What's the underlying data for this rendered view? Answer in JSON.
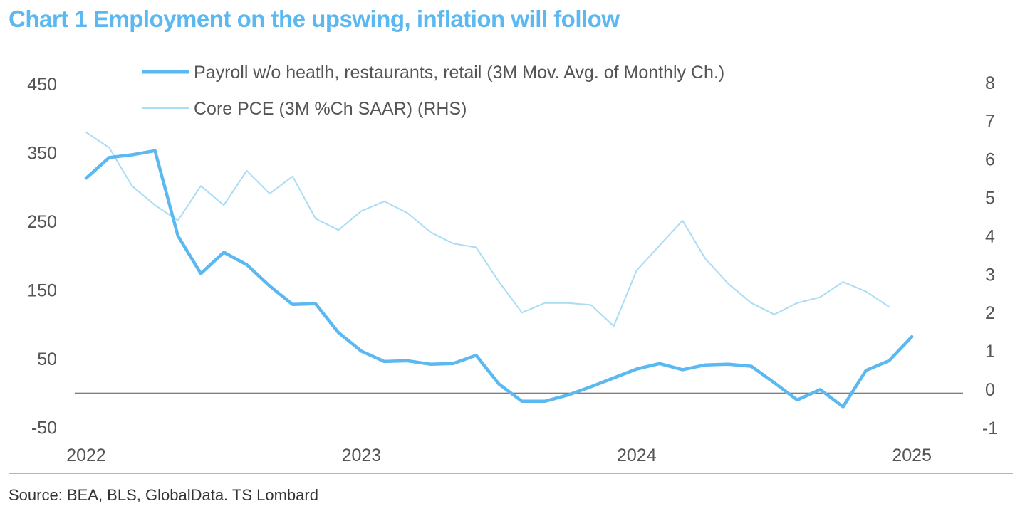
{
  "title": "Chart 1 Employment on the upswing, inflation will follow",
  "source": "Source: BEA, BLS, GlobalData. TS Lombard",
  "colors": {
    "payroll": "#5cb8f0",
    "pce": "#a9dcf5",
    "title": "#5cb8f0",
    "text": "#555555"
  },
  "chart_data": {
    "type": "line",
    "title": "Chart 1 Employment on the upswing, inflation will follow",
    "x_ticks": [
      "2022",
      "2023",
      "2024",
      "2025"
    ],
    "x_range": [
      "2022-01",
      "2025-03"
    ],
    "y_left": {
      "range": [
        -50,
        450
      ],
      "ticks": [
        "450",
        "350",
        "250",
        "150",
        "50",
        "-50"
      ]
    },
    "y_right": {
      "range": [
        -1,
        8
      ],
      "ticks": [
        "8",
        "7",
        "6",
        "5",
        "4",
        "3",
        "2",
        "1",
        "0",
        "-1"
      ]
    },
    "zero_line": true,
    "legend_position": "top",
    "series": [
      {
        "name": "Payroll w/o heatlh, restaurants, retail (3M Mov. Avg. of Monthly Ch.)",
        "axis": "left",
        "x": [
          "2022-01",
          "2022-02",
          "2022-03",
          "2022-04",
          "2022-05",
          "2022-06",
          "2022-07",
          "2022-08",
          "2022-09",
          "2022-10",
          "2022-11",
          "2022-12",
          "2023-01",
          "2023-02",
          "2023-03",
          "2023-04",
          "2023-05",
          "2023-06",
          "2023-07",
          "2023-08",
          "2023-09",
          "2023-10",
          "2023-11",
          "2023-12",
          "2024-01",
          "2024-02",
          "2024-03",
          "2024-04",
          "2024-05",
          "2024-06",
          "2024-07",
          "2024-08",
          "2024-09",
          "2024-10",
          "2024-11",
          "2024-12",
          "2025-01"
        ],
        "values": [
          313,
          343,
          347,
          353,
          229,
          174,
          205,
          187,
          156,
          129,
          130,
          88,
          61,
          46,
          47,
          42,
          43,
          55,
          13,
          -12,
          -12,
          -3,
          9,
          22,
          35,
          43,
          34,
          41,
          42,
          39,
          15,
          -10,
          5,
          -20,
          33,
          47,
          82
        ]
      },
      {
        "name": "Core PCE (3M %Ch SAAR) (RHS)",
        "axis": "right",
        "x": [
          "2022-01",
          "2022-02",
          "2022-03",
          "2022-04",
          "2022-05",
          "2022-06",
          "2022-07",
          "2022-08",
          "2022-09",
          "2022-10",
          "2022-11",
          "2022-12",
          "2023-01",
          "2023-02",
          "2023-03",
          "2023-04",
          "2023-05",
          "2023-06",
          "2023-07",
          "2023-08",
          "2023-09",
          "2023-10",
          "2023-11",
          "2023-12",
          "2024-01",
          "2024-02",
          "2024-03",
          "2024-04",
          "2024-05",
          "2024-06",
          "2024-07",
          "2024-08",
          "2024-09",
          "2024-10",
          "2024-11",
          "2024-12"
        ],
        "values": [
          6.7,
          6.3,
          5.3,
          4.8,
          4.4,
          5.3,
          4.8,
          5.7,
          5.1,
          5.55,
          4.45,
          4.15,
          4.65,
          4.9,
          4.6,
          4.1,
          3.8,
          3.7,
          2.8,
          2.0,
          2.25,
          2.25,
          2.2,
          1.65,
          3.1,
          3.75,
          4.4,
          3.4,
          2.75,
          2.25,
          1.95,
          2.25,
          2.4,
          2.8,
          2.55,
          2.15
        ]
      }
    ]
  }
}
